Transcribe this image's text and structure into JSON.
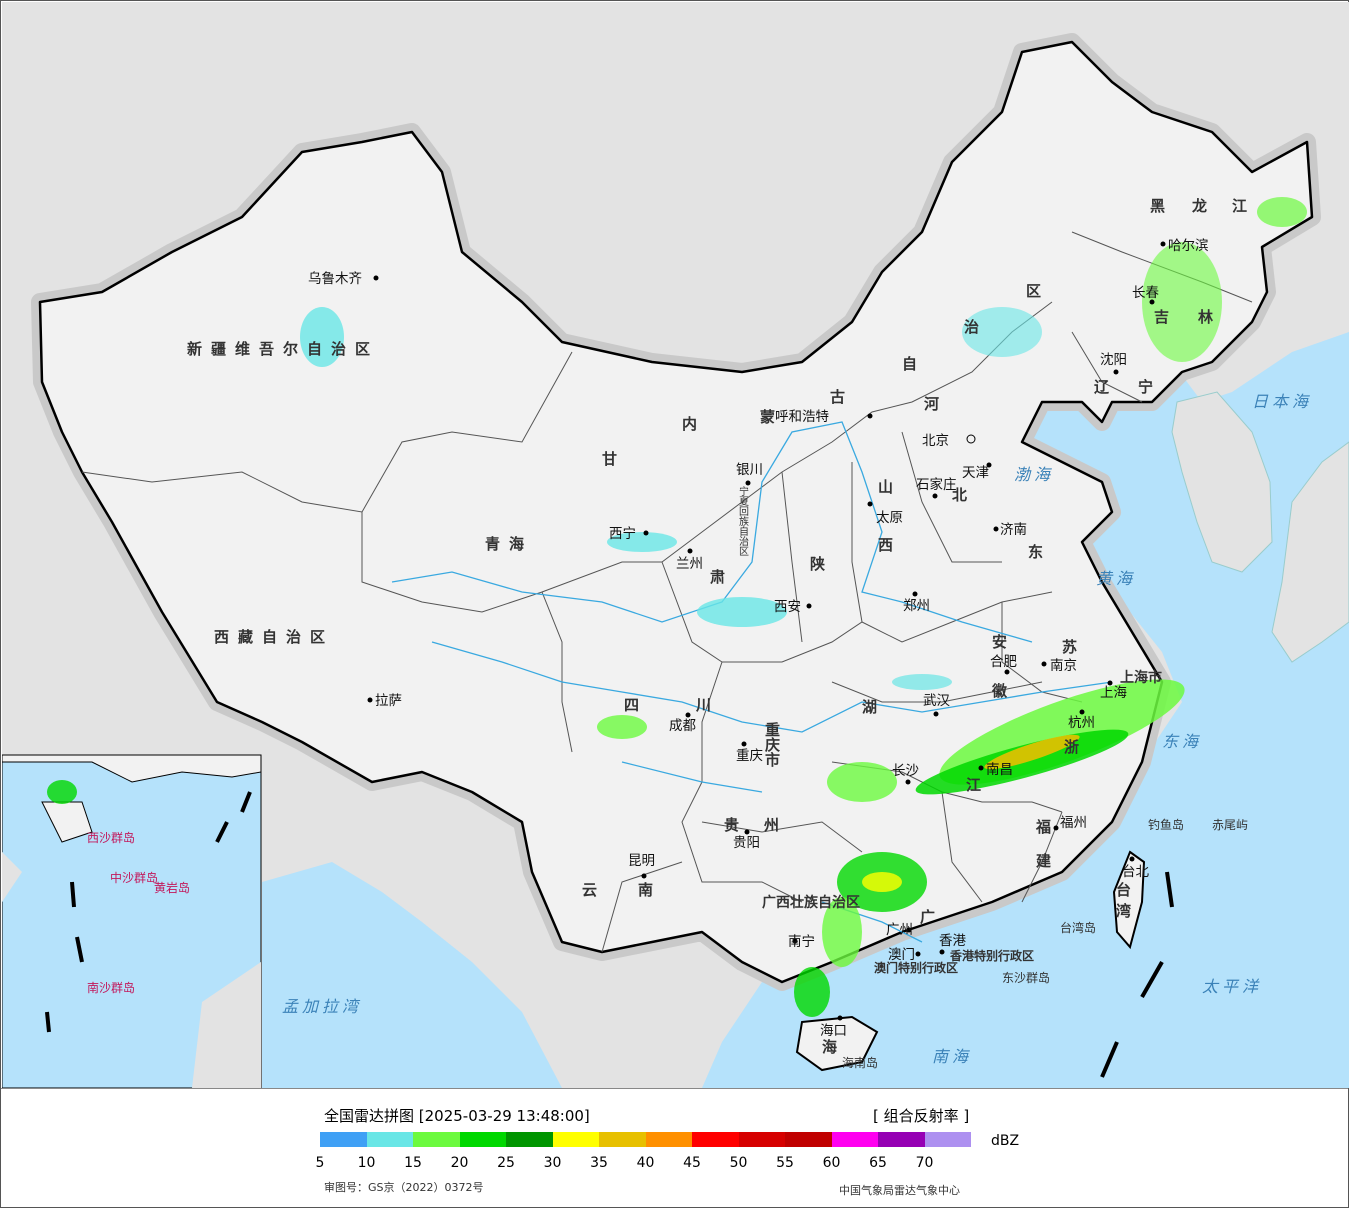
{
  "title": "全国雷达拼图 [2025-03-29 13:48:00]",
  "product": "[ 组合反射率 ]",
  "unit": "dBZ",
  "approval_number": "审图号：GS京（2022）0372号",
  "agency": "中国气象局雷达气象中心",
  "legend": {
    "values": [
      "5",
      "10",
      "15",
      "20",
      "25",
      "30",
      "35",
      "40",
      "45",
      "50",
      "55",
      "60",
      "65",
      "70"
    ],
    "colors": [
      "#3fa0f5",
      "#69e6e6",
      "#6cfa3f",
      "#00d800",
      "#009500",
      "#ffff00",
      "#e7c000",
      "#ff9000",
      "#ff0000",
      "#d60000",
      "#c00000",
      "#ff00f0",
      "#9600b4",
      "#ad90f0"
    ]
  },
  "colors": {
    "sea": "#b5e2fb",
    "land": "#f2f2f2",
    "foreign": "#e3e3e3",
    "border": "#000000"
  },
  "provinces": [
    "新疆维吾尔自治区",
    "西藏自治区",
    "青海",
    "甘",
    "肃",
    "内",
    "蒙",
    "古",
    "自",
    "治",
    "区",
    "黑",
    "龙",
    "江",
    "吉",
    "林",
    "辽",
    "宁",
    "河",
    "北",
    "山",
    "西",
    "东",
    "陕",
    "宁夏回族自治区",
    "四",
    "川",
    "重庆市",
    "贵",
    "州",
    "云",
    "南",
    "广西壮族自治区",
    "广",
    "湖",
    "江",
    "安",
    "徽",
    "苏",
    "浙",
    "福",
    "建",
    "台",
    "湾",
    "海",
    "上海市",
    "香港特别行政区",
    "澳门特别行政区"
  ],
  "cities": [
    "乌鲁木齐",
    "拉萨",
    "西宁",
    "兰州",
    "银川",
    "呼和浩特",
    "北京",
    "天津",
    "石家庄",
    "太原",
    "济南",
    "西安",
    "郑州",
    "合肥",
    "南京",
    "上海",
    "杭州",
    "武汉",
    "长沙",
    "南昌",
    "福州",
    "台北",
    "成都",
    "重庆",
    "贵阳",
    "昆明",
    "南宁",
    "广州",
    "澳门",
    "香港",
    "海口",
    "哈尔滨",
    "长春",
    "沈阳"
  ],
  "seas": [
    "渤海",
    "黄海",
    "东海",
    "日本海",
    "太平洋",
    "南海",
    "孟加拉湾"
  ],
  "islands": [
    "钓鱼岛",
    "赤尾屿",
    "台湾岛",
    "海南岛",
    "东沙群岛",
    "中沙群岛",
    "南沙群岛",
    "西沙群岛",
    "黄岩岛"
  ]
}
